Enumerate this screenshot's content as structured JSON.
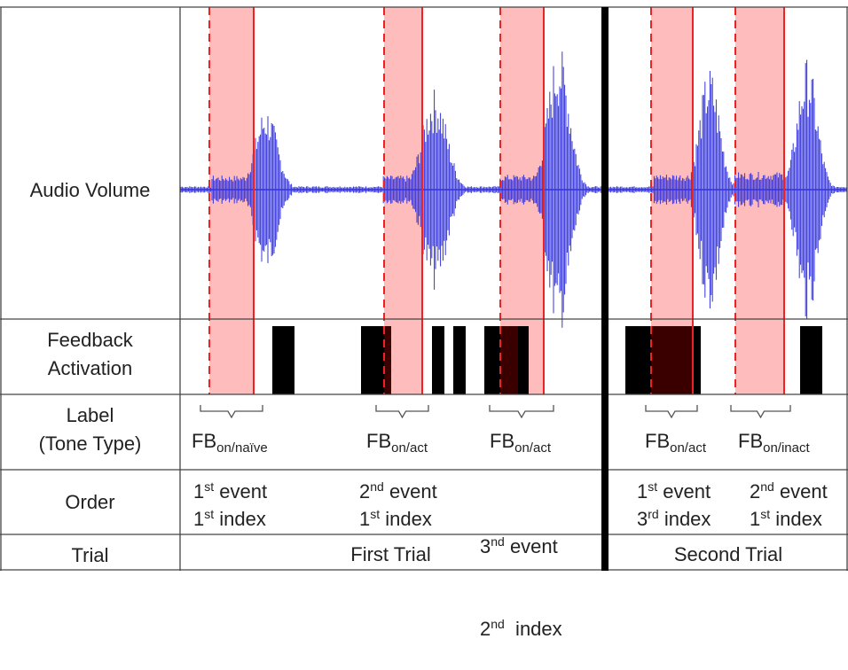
{
  "row_labels": {
    "audio": "Audio Volume",
    "feedback": [
      "Feedback",
      "Activation"
    ],
    "label": [
      "Label",
      "(Tone Type)"
    ],
    "order": "Order",
    "trial": "Trial"
  },
  "tone_labels": [
    {
      "base": "FB",
      "sub": "on/naïve"
    },
    {
      "base": "FB",
      "sub": "on/act"
    },
    {
      "base": "FB",
      "sub": "on/act"
    },
    {
      "base": "FB",
      "sub": "on/act"
    },
    {
      "base": "FB",
      "sub": "on/inact"
    }
  ],
  "order_cells": [
    {
      "event_num": "1",
      "event_sup": "st",
      "event_word": " event",
      "index_num": "1",
      "index_sup": "st",
      "index_word": " index"
    },
    {
      "event_num": "2",
      "event_sup": "nd",
      "event_word": " event",
      "index_num": "1",
      "index_sup": "st",
      "index_word": " index"
    },
    {
      "event_num": "3",
      "event_sup": "nd",
      "event_word": " event",
      "index_num": "2",
      "index_sup": "nd",
      "index_word": "  index"
    },
    {
      "event_num": "1",
      "event_sup": "st",
      "event_word": " event",
      "index_num": "3",
      "index_sup": "rd",
      "index_word": " index"
    },
    {
      "event_num": "2",
      "event_sup": "nd",
      "event_word": " event",
      "index_num": "1",
      "index_sup": "st",
      "index_word": " index"
    }
  ],
  "trials": {
    "first": "First Trial",
    "second": "Second Trial"
  },
  "colors": {
    "waveform": "#3333dd",
    "highlight": "#ffbcbc",
    "highlight_edge": "#ee2222",
    "feedback_bar": "#000000",
    "feedback_overlap": "#3a0000",
    "grid": "#444444",
    "divider": "#000000"
  }
}
